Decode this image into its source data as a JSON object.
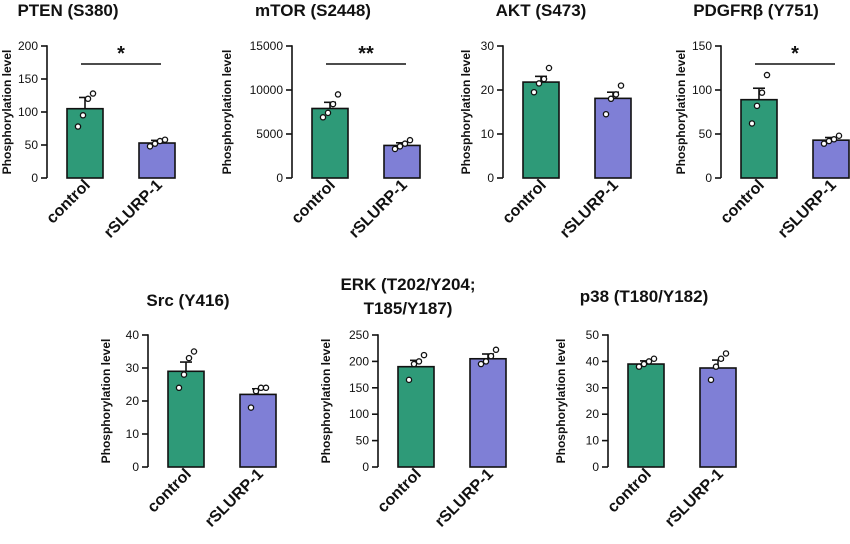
{
  "colors": {
    "control": "#2e9a78",
    "rSLURP-1": "#7f7fd6"
  },
  "chart_data": [
    {
      "type": "bar",
      "title": "PTEN (S380)",
      "ylabel": "Phosphorylation level",
      "categories": [
        "control",
        "rSLURP-1"
      ],
      "ylim": [
        0,
        200
      ],
      "yticks": [
        0,
        50,
        100,
        150,
        200
      ],
      "values": [
        105,
        53
      ],
      "errors": [
        17,
        4
      ],
      "points": [
        [
          78,
          95,
          120,
          128
        ],
        [
          48,
          52,
          56,
          58
        ]
      ],
      "significance": "*"
    },
    {
      "type": "bar",
      "title": "mTOR (S2448)",
      "ylabel": "Phosphorylation level",
      "categories": [
        "control",
        "rSLURP-1"
      ],
      "ylim": [
        0,
        15000
      ],
      "yticks": [
        0,
        5000,
        10000,
        15000
      ],
      "values": [
        7900,
        3700
      ],
      "errors": [
        700,
        300
      ],
      "points": [
        [
          6900,
          7400,
          8400,
          9500
        ],
        [
          3300,
          3600,
          3900,
          4300
        ]
      ],
      "significance": "**"
    },
    {
      "type": "bar",
      "title": "AKT (S473)",
      "ylabel": "Phosphorylation level",
      "categories": [
        "control",
        "rSLURP-1"
      ],
      "ylim": [
        0,
        30
      ],
      "yticks": [
        0,
        10,
        20,
        30
      ],
      "values": [
        21.8,
        18.1
      ],
      "errors": [
        1.3,
        1.4
      ],
      "points": [
        [
          19.5,
          21.5,
          22.5,
          25.0
        ],
        [
          14.5,
          18.0,
          19.0,
          21.0
        ]
      ],
      "significance": ""
    },
    {
      "type": "bar",
      "title": "PDGFRβ (Y751)",
      "ylabel": "Phosphorylation level",
      "categories": [
        "control",
        "rSLURP-1"
      ],
      "ylim": [
        0,
        150
      ],
      "yticks": [
        0,
        50,
        100,
        150
      ],
      "values": [
        89,
        43
      ],
      "errors": [
        13,
        3
      ],
      "points": [
        [
          62,
          82,
          97,
          117
        ],
        [
          39,
          42,
          44,
          48
        ]
      ],
      "significance": "*"
    },
    {
      "type": "bar",
      "title": "Src (Y416)",
      "ylabel": "Phosphorylation level",
      "categories": [
        "control",
        "rSLURP-1"
      ],
      "ylim": [
        0,
        40
      ],
      "yticks": [
        0,
        10,
        20,
        30,
        40
      ],
      "values": [
        29,
        22
      ],
      "errors": [
        2.8,
        1.7
      ],
      "points": [
        [
          24,
          28,
          33,
          35
        ],
        [
          18,
          23,
          24,
          24
        ]
      ],
      "significance": ""
    },
    {
      "type": "bar",
      "title": "ERK (T202/Y204; T185/Y187)",
      "ylabel": "Phosphorylation level",
      "categories": [
        "control",
        "rSLURP-1"
      ],
      "ylim": [
        0,
        250
      ],
      "yticks": [
        0,
        50,
        100,
        150,
        200,
        250
      ],
      "values": [
        190,
        205
      ],
      "errors": [
        12,
        9
      ],
      "points": [
        [
          165,
          195,
          200,
          212
        ],
        [
          195,
          200,
          210,
          222
        ]
      ],
      "significance": ""
    },
    {
      "type": "bar",
      "title": "p38 (T180/Y182)",
      "ylabel": "Phosphorylation level",
      "categories": [
        "control",
        "rSLURP-1"
      ],
      "ylim": [
        0,
        50
      ],
      "yticks": [
        0,
        10,
        20,
        30,
        40,
        50
      ],
      "values": [
        39,
        37.5
      ],
      "errors": [
        1.2,
        3
      ],
      "points": [
        [
          38,
          39,
          40,
          41
        ],
        [
          33,
          38,
          41,
          43
        ]
      ],
      "significance": ""
    }
  ]
}
